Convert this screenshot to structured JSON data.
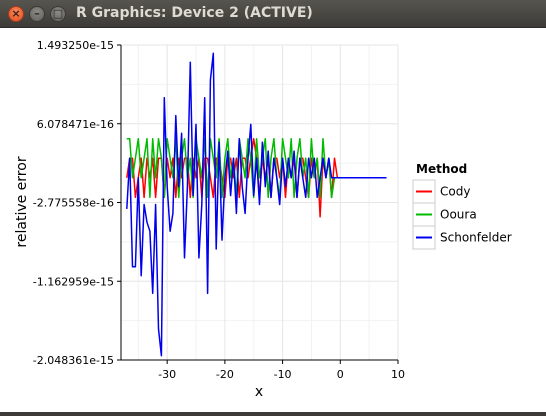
{
  "window": {
    "title": "R Graphics: Device 2 (ACTIVE)",
    "buttons": {
      "close": "×",
      "minimize": "–",
      "maximize": "□"
    }
  },
  "chart_data": {
    "type": "line",
    "xlabel": "x",
    "ylabel": "relative error",
    "xlim": [
      -38,
      10
    ],
    "ylim": [
      -2.048361e-15,
      1.49325e-15
    ],
    "x_ticks": [
      -30,
      -20,
      -10,
      0,
      10
    ],
    "x_tick_labels": [
      "-30",
      "-20",
      "-10",
      "0",
      "10"
    ],
    "y_ticks": [
      -2.048361e-15,
      -1.162959e-15,
      -2.775558e-16,
      6.078471e-16,
      1.49325e-15
    ],
    "y_tick_labels": [
      "-2.048361e-15",
      "-1.162959e-15",
      "-2.775558e-16",
      "6.078471e-16",
      "1.493250e-15"
    ],
    "grid": true,
    "legend": {
      "title": "Method",
      "placement": "right",
      "entries": [
        "Cody",
        "Ooura",
        "Schonfelder"
      ]
    },
    "series": [
      {
        "name": "Cody",
        "color": "#ff0000",
        "x": [
          -37,
          -36.5,
          -36,
          -35.5,
          -35,
          -34.5,
          -34,
          -33.5,
          -33,
          -32.5,
          -32,
          -31.5,
          -31,
          -30.5,
          -30,
          -29.5,
          -29,
          -28.5,
          -28,
          -27.5,
          -27,
          -26.5,
          -26,
          -25.5,
          -25,
          -24.5,
          -24,
          -23.5,
          -23,
          -22.5,
          -22,
          -21.5,
          -21,
          -20.5,
          -20,
          -19.5,
          -19,
          -18.5,
          -18,
          -17.5,
          -17,
          -16.5,
          -16,
          -15.5,
          -15,
          -14.5,
          -14,
          -13.5,
          -13,
          -12.5,
          -12,
          -11.5,
          -11,
          -10.5,
          -10,
          -9.5,
          -9,
          -8.5,
          -8,
          -7.5,
          -7,
          -6.5,
          -6,
          -5.5,
          -5,
          -4.5,
          -4,
          -3.5,
          -3,
          -2.5,
          -2,
          -1.5,
          -1,
          -0.5,
          0,
          0.5,
          1,
          2,
          3,
          4,
          5,
          6,
          7,
          8
        ],
        "y": [
          0,
          2.2e-16,
          2.2e-16,
          -2.2e-16,
          0,
          2.2e-16,
          -2.2e-16,
          2.2e-16,
          0,
          2.2e-16,
          -2.2e-16,
          2.2e-16,
          2.2e-16,
          -2.2e-16,
          2.2e-16,
          0,
          2.2e-16,
          -2.2e-16,
          2.2e-16,
          0,
          2.2e-16,
          2.2e-16,
          -2.2e-16,
          2.2e-16,
          0,
          2.2e-16,
          -2.2e-16,
          2.2e-16,
          2.2e-16,
          0,
          -2.2e-16,
          2.2e-16,
          2.2e-16,
          0,
          -2.2e-16,
          2.2e-16,
          2.2e-16,
          0,
          2.2e-16,
          -2.2e-16,
          2.2e-16,
          2.2e-16,
          0,
          2.2e-16,
          4.4e-16,
          2.2e-16,
          -2.2e-16,
          2.2e-16,
          0,
          2.2e-16,
          -2.2e-16,
          2.2e-16,
          2.2e-16,
          0,
          2.2e-16,
          -2.2e-16,
          2.2e-16,
          0,
          2.2e-16,
          -2.2e-16,
          2.2e-16,
          2.2e-16,
          0,
          -2.2e-16,
          2.2e-16,
          0,
          2.2e-16,
          -4.4e-16,
          2.2e-16,
          0,
          2.2e-16,
          -2.2e-16,
          2.2e-16,
          0,
          0,
          0,
          0,
          0,
          0,
          0,
          0,
          0,
          0,
          0
        ]
      },
      {
        "name": "Ooura",
        "color": "#00bb00",
        "x": [
          -37,
          -36.5,
          -36,
          -35.5,
          -35,
          -34.5,
          -34,
          -33.5,
          -33,
          -32.5,
          -32,
          -31.5,
          -31,
          -30.5,
          -30,
          -29.5,
          -29,
          -28.5,
          -28,
          -27.5,
          -27,
          -26.5,
          -26,
          -25.5,
          -25,
          -24.5,
          -24,
          -23.5,
          -23,
          -22.5,
          -22,
          -21.5,
          -21,
          -20.5,
          -20,
          -19.5,
          -19,
          -18.5,
          -18,
          -17.5,
          -17,
          -16.5,
          -16,
          -15.5,
          -15,
          -14.5,
          -14,
          -13.5,
          -13,
          -12.5,
          -12,
          -11.5,
          -11,
          -10.5,
          -10,
          -9.5,
          -9,
          -8.5,
          -8,
          -7.5,
          -7,
          -6.5,
          -6,
          -5.5,
          -5,
          -4.5,
          -4,
          -3.5,
          -3,
          -2.5,
          -2,
          -1.5,
          -1,
          -0.5,
          0,
          0.5,
          1,
          2,
          3,
          4,
          5,
          6,
          7,
          8
        ],
        "y": [
          4.4e-16,
          4.4e-16,
          0,
          2.2e-16,
          4.4e-16,
          0,
          2.2e-16,
          4.4e-16,
          -2.2e-16,
          4.4e-16,
          0,
          4.4e-16,
          2.2e-16,
          -2.2e-16,
          4.4e-16,
          2.2e-16,
          0,
          4.4e-16,
          -2.2e-16,
          2.2e-16,
          4.4e-16,
          0,
          2.2e-16,
          -2.2e-16,
          4.4e-16,
          2.2e-16,
          0,
          4.4e-16,
          -2.2e-16,
          4.4e-16,
          2.2e-16,
          0,
          4.4e-16,
          -2.2e-16,
          2.2e-16,
          4.4e-16,
          0,
          2.2e-16,
          -2.2e-16,
          4.4e-16,
          2.2e-16,
          0,
          4.4e-16,
          2.2e-16,
          -2.2e-16,
          4.4e-16,
          0,
          2.2e-16,
          4.4e-16,
          -2.2e-16,
          2.2e-16,
          4.4e-16,
          0,
          -2.2e-16,
          4.4e-16,
          2.2e-16,
          0,
          4.4e-16,
          -2.2e-16,
          2.2e-16,
          4.4e-16,
          0,
          2.2e-16,
          -2.2e-16,
          4.4e-16,
          0,
          2.2e-16,
          -2.2e-16,
          4.4e-16,
          0,
          2.2e-16,
          -2.2e-16,
          0,
          0,
          0,
          0,
          0,
          0,
          0,
          0,
          0,
          0,
          0,
          0
        ]
      },
      {
        "name": "Schonfelder",
        "color": "#0000ee",
        "x": [
          -37,
          -36.5,
          -36,
          -35.5,
          -35,
          -34.5,
          -34,
          -33.5,
          -33,
          -32.5,
          -32,
          -31.5,
          -31,
          -30.5,
          -30,
          -29.5,
          -29,
          -28.5,
          -28,
          -27.5,
          -27,
          -26.5,
          -26,
          -25.5,
          -25,
          -24.5,
          -24,
          -23.5,
          -23,
          -22.5,
          -22,
          -21.5,
          -21,
          -20.5,
          -20,
          -19.5,
          -19,
          -18.5,
          -18,
          -17.5,
          -17,
          -16.5,
          -16,
          -15.5,
          -15,
          -14.5,
          -14,
          -13.5,
          -13,
          -12.5,
          -12,
          -11.5,
          -11,
          -10.5,
          -10,
          -9.5,
          -9,
          -8.5,
          -8,
          -7.5,
          -7,
          -6.5,
          -6,
          -5.5,
          -5,
          -4.5,
          -4,
          -3.5,
          -3,
          -2.5,
          -2,
          -1.5,
          -1,
          -0.5,
          0,
          0.5,
          1,
          2,
          3,
          4,
          5,
          6,
          7,
          8
        ],
        "y": [
          -3.5e-16,
          2.2e-16,
          -1e-15,
          -1e-15,
          0,
          -1.1e-15,
          -3e-16,
          -5e-16,
          -6e-16,
          -1.3e-15,
          -3e-16,
          -1.7e-15,
          -2e-15,
          9e-16,
          -1e-16,
          -6e-16,
          -4e-16,
          7e-16,
          -1e-16,
          5e-16,
          -9e-16,
          -1e-16,
          1.3e-15,
          -2e-16,
          6e-16,
          -9e-16,
          -3e-16,
          9e-16,
          -1.3e-15,
          1.1e-15,
          1.4e-15,
          -8e-16,
          4e-16,
          -7e-16,
          0,
          3e-16,
          -2e-16,
          2.2e-16,
          -4e-16,
          4.4e-16,
          -1e-16,
          -4e-16,
          2.2e-16,
          6e-16,
          -2e-16,
          2.2e-16,
          -3e-16,
          4e-16,
          -1e-16,
          3e-16,
          -2.2e-16,
          2.2e-16,
          0,
          -3e-16,
          2.2e-16,
          -1e-16,
          2.2e-16,
          0,
          3e-16,
          -2.2e-16,
          2.2e-16,
          0,
          -2.2e-16,
          2.2e-16,
          0,
          2.2e-16,
          -2.2e-16,
          0,
          2.2e-16,
          0,
          2.2e-16,
          0,
          0,
          0,
          0,
          0,
          0,
          0,
          0,
          0,
          0,
          0,
          0,
          0
        ]
      }
    ]
  }
}
